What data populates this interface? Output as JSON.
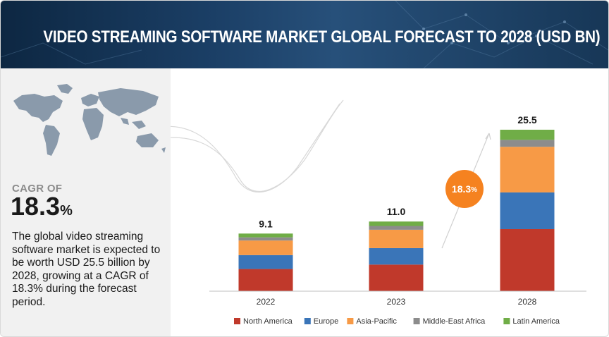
{
  "header": {
    "title": "VIDEO STREAMING SOFTWARE MARKET GLOBAL FORECAST TO 2028 (USD BN)"
  },
  "sidebar": {
    "cagr_label": "CAGR OF",
    "cagr_value": "18.3",
    "cagr_unit": "%",
    "description": "The global video streaming software market is expected to be worth USD 25.5 billion by 2028, growing at a CAGR of 18.3% during the forecast period."
  },
  "badge": {
    "value": "18.3",
    "unit": "%"
  },
  "colors": {
    "header_dark": "#0d2742",
    "panel": "#f1f1f1",
    "badge": "#f58220",
    "map": "#8a9aab"
  },
  "chart_data": {
    "type": "bar",
    "stacked": true,
    "categories": [
      "2022",
      "2023",
      "2028"
    ],
    "totals": [
      "9.1",
      "11.0",
      "25.5"
    ],
    "series": [
      {
        "name": "North America",
        "color": "#c0392b",
        "values": [
          3.5,
          4.2,
          9.8
        ]
      },
      {
        "name": "Europe",
        "color": "#3a75b8",
        "values": [
          2.2,
          2.6,
          5.8
        ]
      },
      {
        "name": "Asia-Pacific",
        "color": "#f79a46",
        "values": [
          2.3,
          2.9,
          7.2
        ]
      },
      {
        "name": "Middle-East Africa",
        "color": "#8c8c8c",
        "values": [
          0.5,
          0.6,
          1.1
        ]
      },
      {
        "name": "Latin America",
        "color": "#70ad47",
        "values": [
          0.6,
          0.7,
          1.6
        ]
      }
    ],
    "ylim": [
      0,
      25.5
    ],
    "grid": false,
    "legend_position": "bottom",
    "xlabel": "",
    "ylabel": ""
  }
}
